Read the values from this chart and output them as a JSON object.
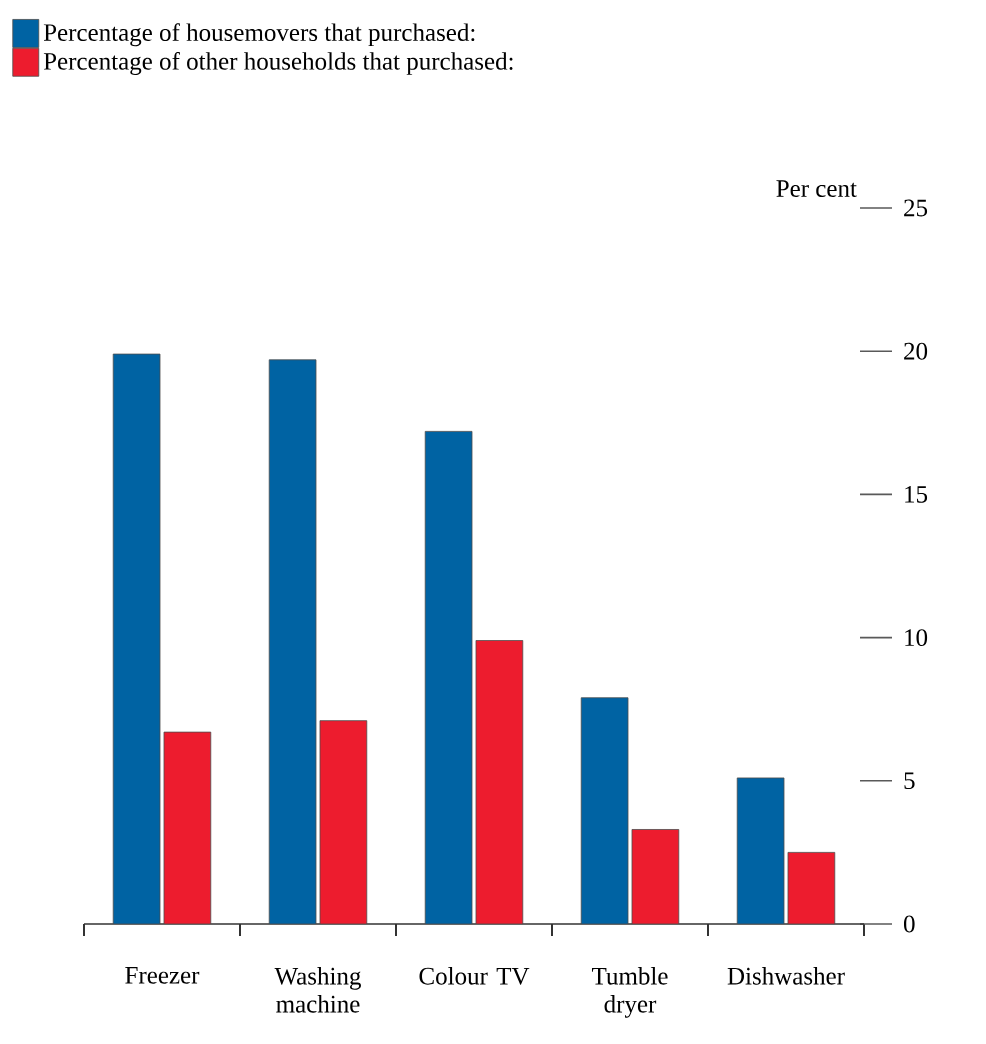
{
  "chart_data": {
    "type": "bar",
    "ylabel": "Per cent",
    "categories": [
      "Freezer",
      "Washing machine",
      "Colour TV",
      "Tumble dryer",
      "Dishwasher"
    ],
    "series": [
      {
        "name": "Percentage of housemovers that purchased:",
        "color": "#0063a3",
        "values": [
          19.9,
          19.7,
          17.2,
          7.9,
          5.1
        ]
      },
      {
        "name": "Percentage of other households that purchased:",
        "color": "#ed1c2e",
        "values": [
          6.7,
          7.1,
          9.9,
          3.3,
          2.5
        ]
      }
    ],
    "ylim": [
      0,
      25
    ],
    "yticks": [
      0,
      5,
      10,
      15,
      20,
      25
    ],
    "legend": "top left"
  }
}
